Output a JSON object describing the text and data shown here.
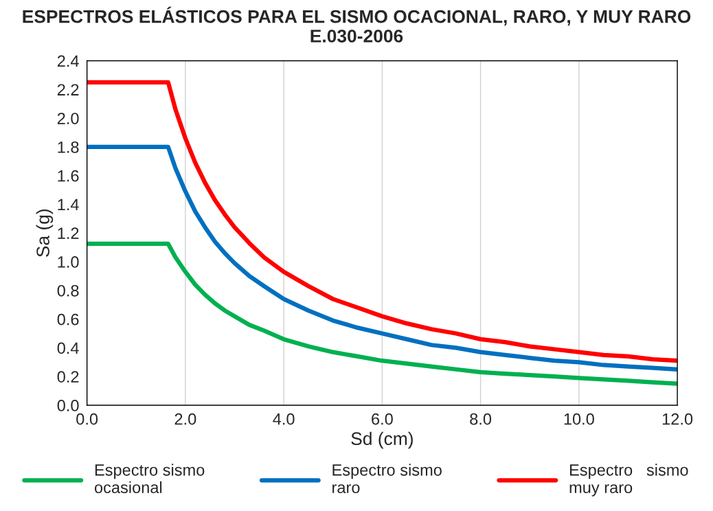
{
  "chart_data": {
    "type": "line",
    "title": "ESPECTROS ELÁSTICOS PARA EL SISMO OCACIONAL, RARO, Y MUY RARO\nE.030-2006",
    "xlabel": "Sd (cm)",
    "ylabel": "Sa (g)",
    "x": [
      0,
      1.65,
      1.8,
      2.0,
      2.2,
      2.4,
      2.6,
      2.8,
      3.0,
      3.3,
      3.6,
      4.0,
      4.5,
      5.0,
      5.5,
      6.0,
      6.5,
      7.0,
      7.5,
      8.0,
      8.5,
      9.0,
      9.5,
      10.0,
      10.5,
      11.0,
      11.5,
      12.0
    ],
    "series": [
      {
        "name": "Espectro sismo\nocasional",
        "color": "#00b050",
        "values": [
          1.125,
          1.125,
          1.03,
          0.93,
          0.84,
          0.77,
          0.71,
          0.66,
          0.62,
          0.56,
          0.52,
          0.46,
          0.41,
          0.37,
          0.34,
          0.31,
          0.29,
          0.27,
          0.25,
          0.23,
          0.22,
          0.21,
          0.2,
          0.19,
          0.18,
          0.17,
          0.16,
          0.15
        ]
      },
      {
        "name": "Espectro sismo\nraro",
        "color": "#0070c0",
        "values": [
          1.8,
          1.8,
          1.65,
          1.49,
          1.35,
          1.24,
          1.14,
          1.06,
          0.99,
          0.9,
          0.83,
          0.74,
          0.66,
          0.59,
          0.54,
          0.5,
          0.46,
          0.42,
          0.4,
          0.37,
          0.35,
          0.33,
          0.31,
          0.3,
          0.28,
          0.27,
          0.26,
          0.25
        ]
      },
      {
        "name": "Espectro   sismo\nmuy raro",
        "color": "#ff0000",
        "values": [
          2.25,
          2.25,
          2.06,
          1.86,
          1.69,
          1.55,
          1.43,
          1.33,
          1.24,
          1.13,
          1.03,
          0.93,
          0.83,
          0.74,
          0.68,
          0.62,
          0.57,
          0.53,
          0.5,
          0.46,
          0.44,
          0.41,
          0.39,
          0.37,
          0.35,
          0.34,
          0.32,
          0.31
        ]
      }
    ],
    "xlim": [
      0,
      12
    ],
    "xticks": [
      {
        "value": 0,
        "label": "0.0"
      },
      {
        "value": 2,
        "label": "2.0"
      },
      {
        "value": 4,
        "label": "4.0"
      },
      {
        "value": 6,
        "label": "6.0"
      },
      {
        "value": 8,
        "label": "8.0"
      },
      {
        "value": 10,
        "label": "10.0"
      },
      {
        "value": 12,
        "label": "12.0"
      }
    ],
    "ylim": [
      0,
      2.4
    ],
    "yticks": [
      {
        "value": 0,
        "label": "0.0"
      },
      {
        "value": 0.2,
        "label": "0.2"
      },
      {
        "value": 0.4,
        "label": "0.4"
      },
      {
        "value": 0.6,
        "label": "0.6"
      },
      {
        "value": 0.8,
        "label": "0.8"
      },
      {
        "value": 1.0,
        "label": "1.0"
      },
      {
        "value": 1.2,
        "label": "1.2"
      },
      {
        "value": 1.4,
        "label": "1.4"
      },
      {
        "value": 1.6,
        "label": "1.6"
      },
      {
        "value": 1.8,
        "label": "1.8"
      },
      {
        "value": 2.0,
        "label": "2.0"
      },
      {
        "value": 2.2,
        "label": "2.2"
      },
      {
        "value": 2.4,
        "label": "2.4"
      }
    ],
    "grid": "x",
    "legend": "bottom",
    "marker": "none",
    "line_style": "solid"
  }
}
